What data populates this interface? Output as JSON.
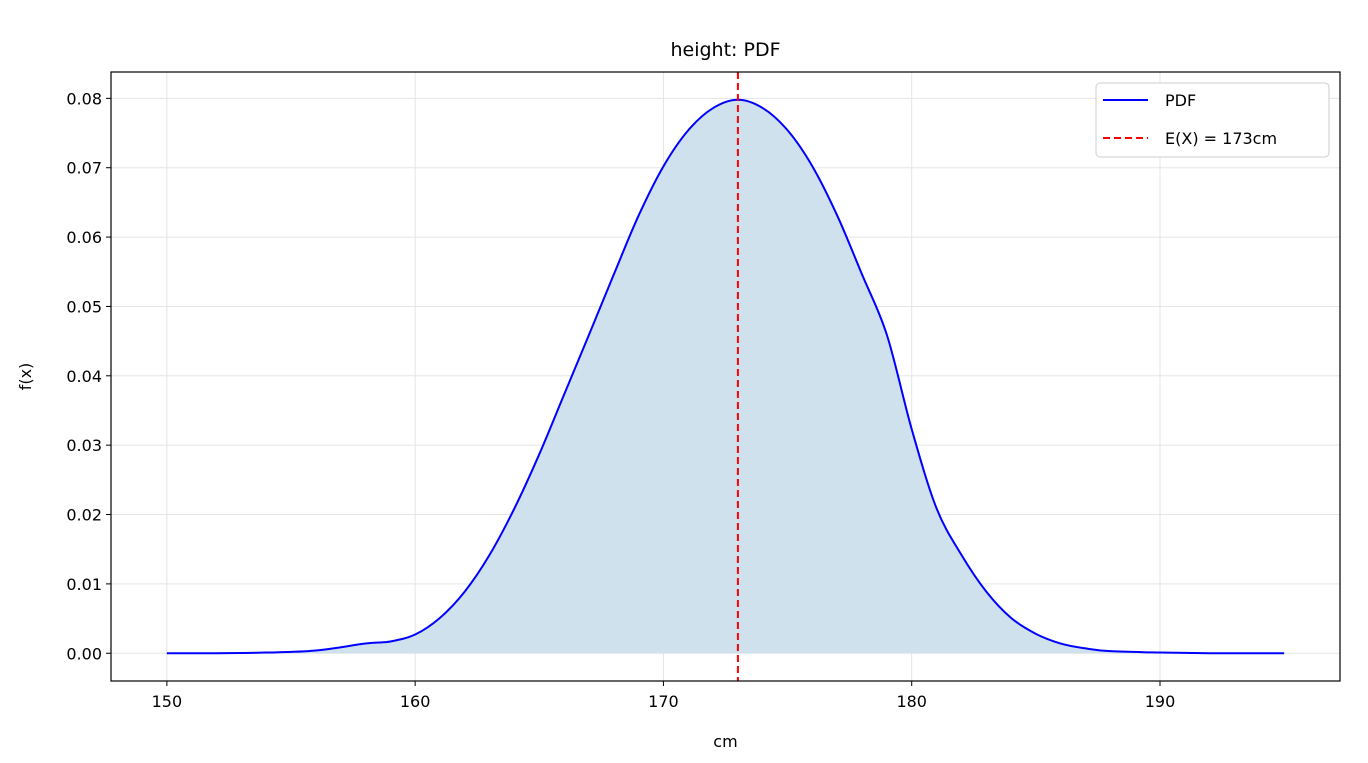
{
  "chart_data": {
    "type": "line",
    "title": "height: PDF",
    "xlabel": "cm",
    "ylabel": "f(x)",
    "xlim": [
      147.75,
      197.25
    ],
    "ylim": [
      -0.004,
      0.0838
    ],
    "xticks": [
      150,
      160,
      170,
      180,
      190
    ],
    "yticks": [
      0.0,
      0.01,
      0.02,
      0.03,
      0.04,
      0.05,
      0.06,
      0.07,
      0.08
    ],
    "ytick_labels": [
      "0.00",
      "0.01",
      "0.02",
      "0.03",
      "0.04",
      "0.05",
      "0.06",
      "0.07",
      "0.08"
    ],
    "grid": true,
    "legend_position": "top-right",
    "series": [
      {
        "name": "PDF",
        "color": "#0000ff",
        "style": "solid",
        "fill": "#d0e1ee",
        "x": [
          150,
          152,
          154,
          156,
          158,
          159,
          160,
          161,
          162,
          163,
          164,
          165,
          166,
          167,
          168,
          169,
          170,
          171,
          172,
          173,
          174,
          175,
          176,
          177,
          178,
          179,
          180,
          181,
          182,
          183,
          184,
          185,
          186,
          187,
          188,
          190,
          192,
          194,
          195
        ],
        "y": [
          0.0,
          0.0,
          0.0001,
          0.0004,
          0.0014,
          0.0017,
          0.0027,
          0.0051,
          0.0089,
          0.0142,
          0.0209,
          0.0287,
          0.0373,
          0.0459,
          0.0546,
          0.0631,
          0.0702,
          0.0754,
          0.0786,
          0.0798,
          0.0786,
          0.0754,
          0.0702,
          0.0631,
          0.0546,
          0.0459,
          0.0323,
          0.0209,
          0.0142,
          0.0089,
          0.0051,
          0.0028,
          0.0014,
          0.0007,
          0.0003,
          0.0001,
          0.0,
          0.0,
          0.0
        ]
      }
    ],
    "reference_lines": [
      {
        "name": "E(X) = 173cm",
        "x": 173,
        "color": "#ff0000",
        "style": "dashed"
      }
    ]
  }
}
